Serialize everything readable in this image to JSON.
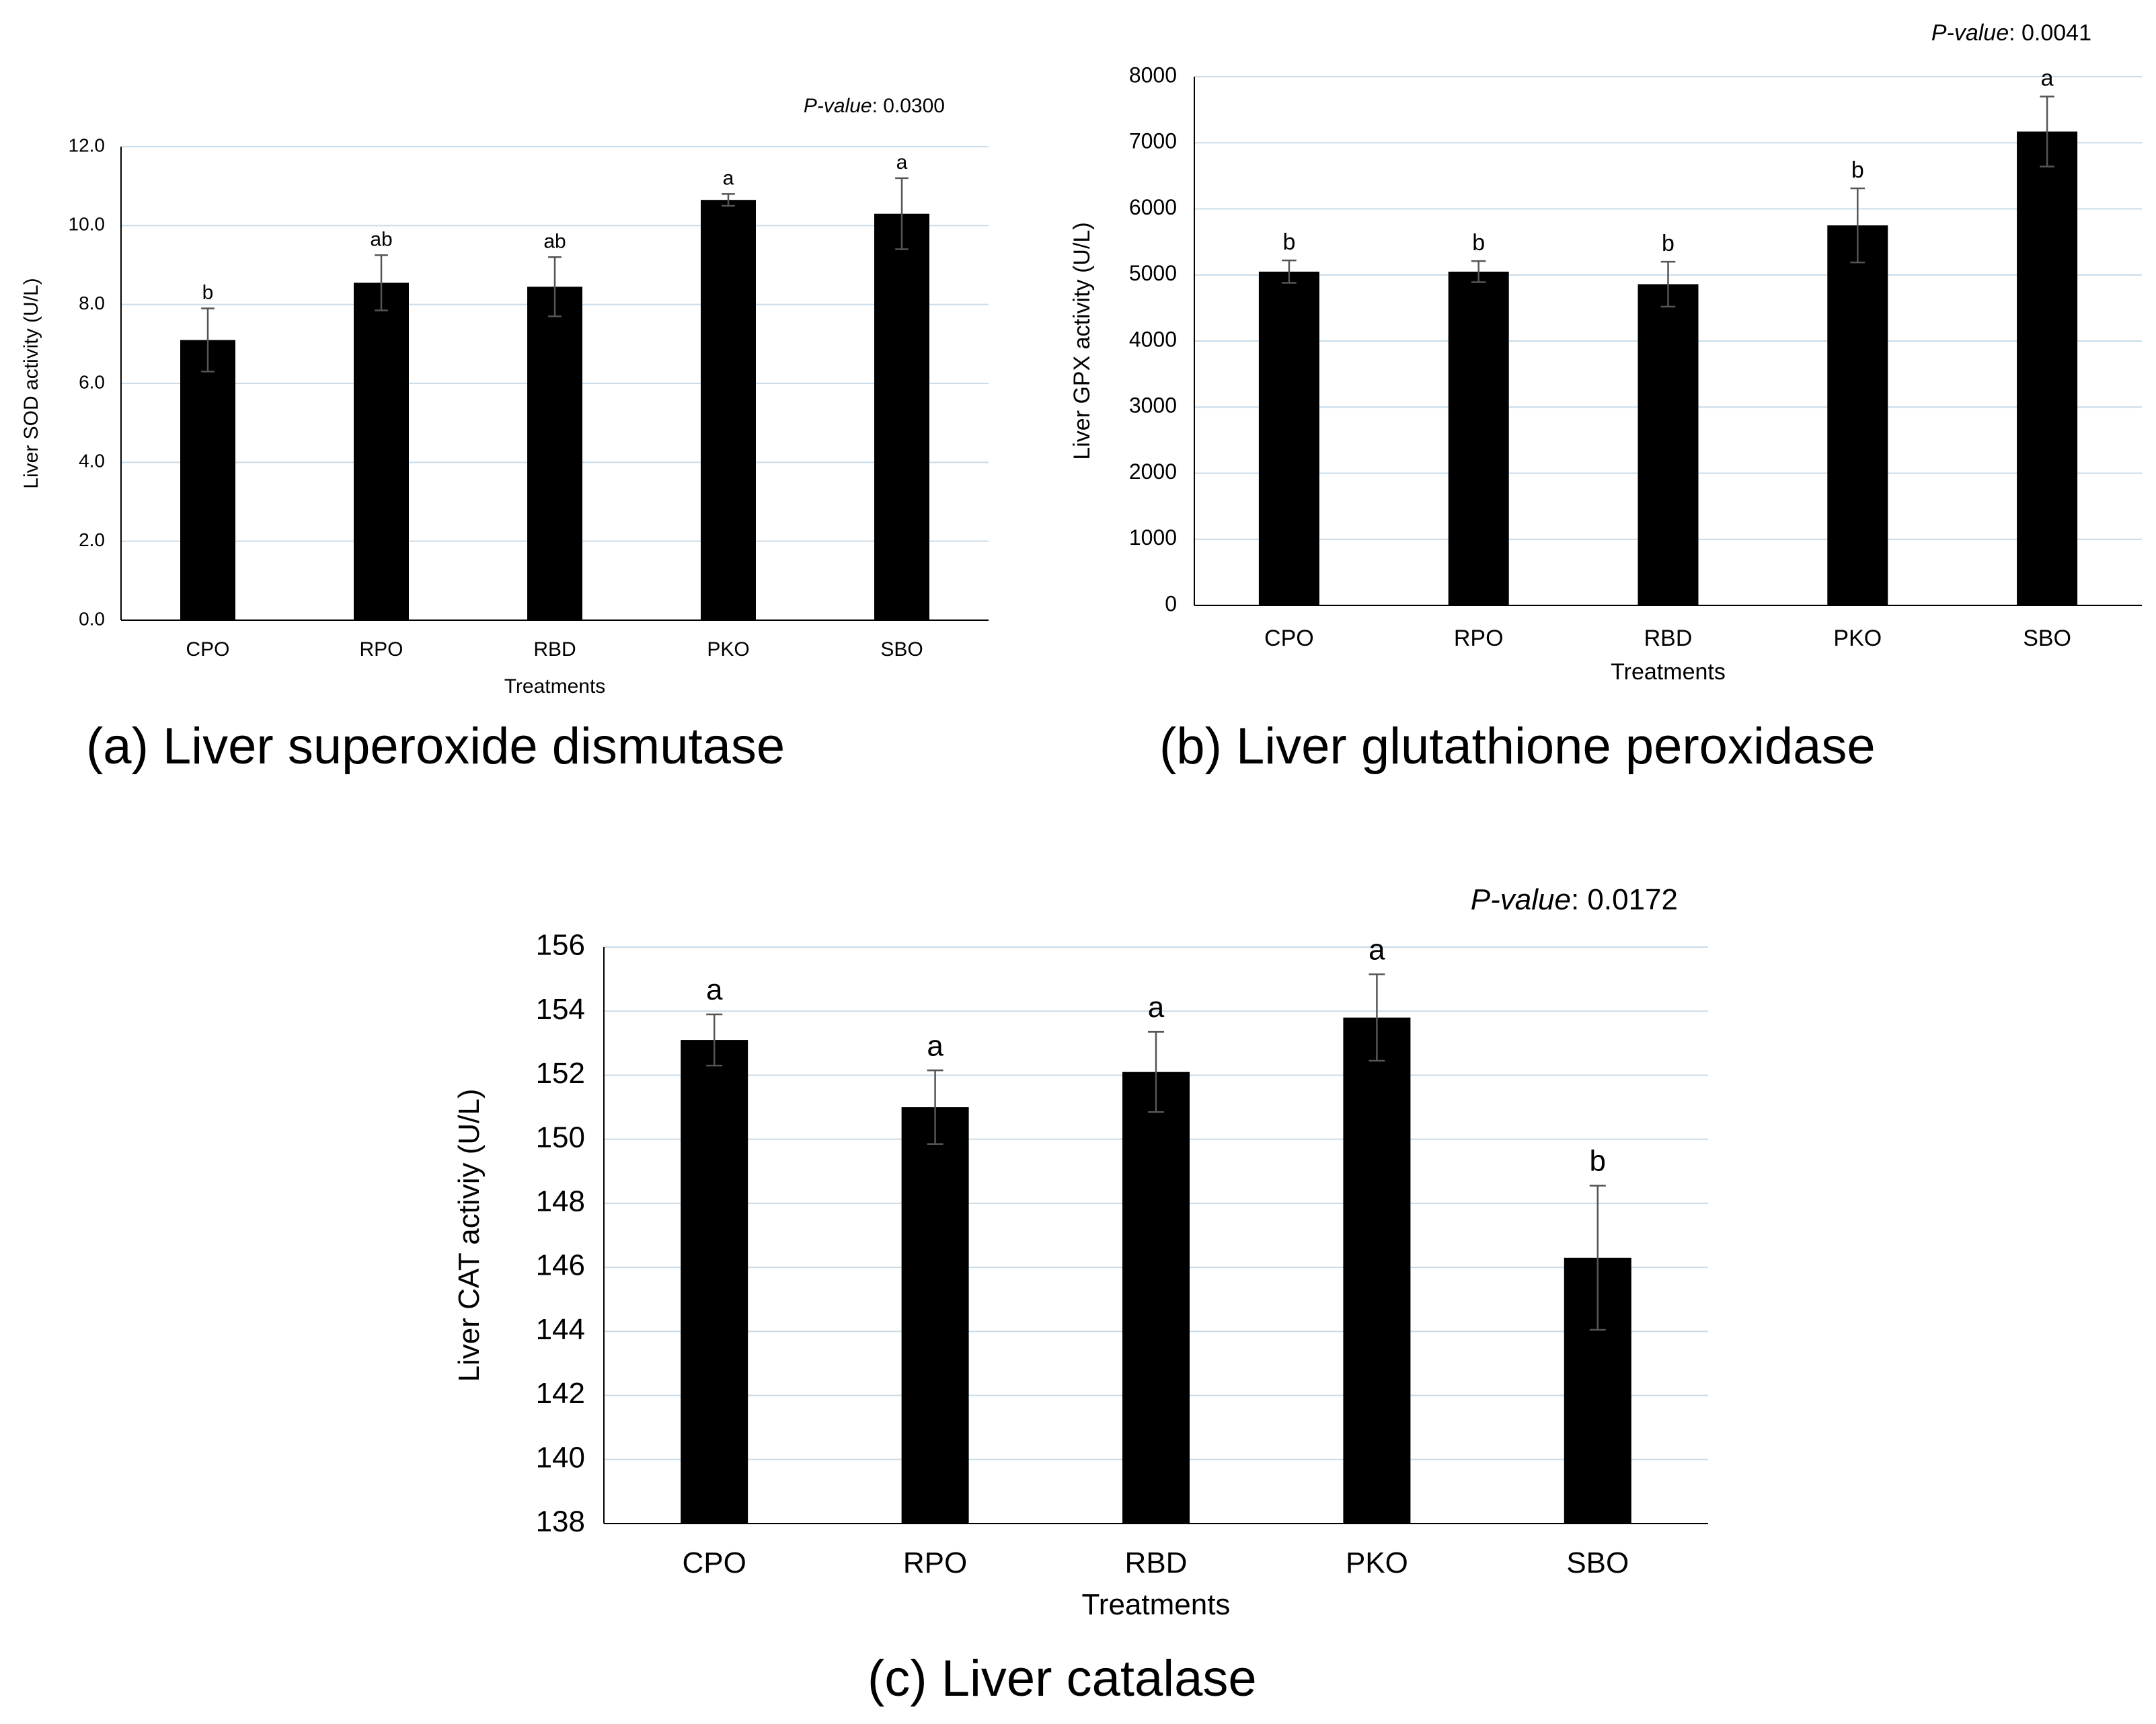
{
  "chart_data": [
    {
      "id": "a",
      "type": "bar",
      "panel_title": "(a) Liver superoxide dismutase",
      "categories": [
        "CPO",
        "RPO",
        "RBD",
        "PKO",
        "SBO"
      ],
      "values": [
        7.1,
        8.55,
        8.45,
        10.65,
        10.3
      ],
      "errors": [
        0.8,
        0.7,
        0.75,
        0.15,
        0.9
      ],
      "letters": [
        "b",
        "ab",
        "ab",
        "a",
        "a"
      ],
      "xlabel": "Treatments",
      "ylabel": "Liver SOD activity (U/L)",
      "ylim": [
        0,
        12
      ],
      "yticks": [
        "0.0",
        "2.0",
        "4.0",
        "6.0",
        "8.0",
        "10.0",
        "12.0"
      ],
      "pvalue_label": "P-value",
      "pvalue_text": ": 0.0300",
      "grid": true
    },
    {
      "id": "b",
      "type": "bar",
      "panel_title": "(b) Liver glutathione peroxidase",
      "categories": [
        "CPO",
        "RPO",
        "RBD",
        "PKO",
        "SBO"
      ],
      "values": [
        5050,
        5050,
        4860,
        5750,
        7170
      ],
      "errors": [
        170,
        160,
        340,
        560,
        530
      ],
      "letters": [
        "b",
        "b",
        "b",
        "b",
        "a"
      ],
      "xlabel": "Treatments",
      "ylabel": "Liver GPX activity (U/L)",
      "ylim": [
        0,
        8000
      ],
      "yticks": [
        "0",
        "1000",
        "2000",
        "3000",
        "4000",
        "5000",
        "6000",
        "7000",
        "8000"
      ],
      "pvalue_label": "P-value",
      "pvalue_text": ": 0.0041",
      "grid": true
    },
    {
      "id": "c",
      "type": "bar",
      "panel_title": "(c) Liver catalase",
      "categories": [
        "CPO",
        "RPO",
        "RBD",
        "PKO",
        "SBO"
      ],
      "values": [
        153.1,
        151.0,
        152.1,
        153.8,
        146.3
      ],
      "errors": [
        0.8,
        1.15,
        1.25,
        1.35,
        2.25
      ],
      "letters": [
        "a",
        "a",
        "a",
        "a",
        "b"
      ],
      "xlabel": "Treatments",
      "ylabel": "Liver CAT activiy (U/L)",
      "ylim": [
        138,
        156
      ],
      "yticks": [
        "138",
        "140",
        "142",
        "144",
        "146",
        "148",
        "150",
        "152",
        "154",
        "156"
      ],
      "pvalue_label": "P-value",
      "pvalue_text": ": 0.0172",
      "grid": true
    }
  ],
  "colors": {
    "bar": "#000000",
    "grid": "#c9dcea",
    "axis": "#000000",
    "errbar": "#555555"
  }
}
